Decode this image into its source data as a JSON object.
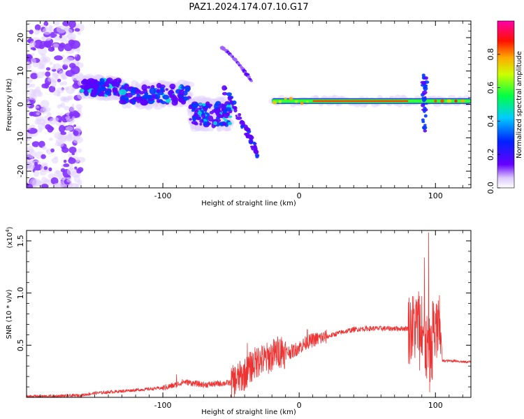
{
  "chart_data": [
    {
      "type": "heatmap",
      "title": "PAZ1.2024.174.07.10.G17",
      "xlabel": "Height of straight line (km)",
      "ylabel": "Frequency (Hz)",
      "xlim": [
        -200,
        126
      ],
      "ylim": [
        -25,
        25
      ],
      "xticks": [
        -100,
        0,
        100
      ],
      "yticks": [
        -20,
        -10,
        0,
        10,
        20
      ],
      "colorbar": {
        "label": "Normalized spectral amplitude",
        "range": [
          0,
          1
        ],
        "ticks": [
          "0.0",
          "0.2",
          "0.4",
          "0.6",
          "0.8"
        ],
        "colormap": "rainbow (white-violet-blue-cyan-green-yellow-red-magenta)"
      },
      "features": [
        {
          "kind": "noise",
          "x": [
            -200,
            -160
          ],
          "y": [
            -25,
            25
          ]
        },
        {
          "kind": "band",
          "x": [
            -160,
            -130
          ],
          "y_center": 5,
          "y_width": 6
        },
        {
          "kind": "band",
          "x": [
            -130,
            -80
          ],
          "y_center": 3,
          "y_width": 7
        },
        {
          "kind": "band",
          "x": [
            -80,
            -50
          ],
          "y_center": -3,
          "y_width": 9
        },
        {
          "kind": "arc",
          "x": [
            -57,
            -35
          ],
          "y": [
            17,
            7
          ]
        },
        {
          "kind": "streak",
          "x": [
            -55,
            -30
          ],
          "y": [
            5,
            -15
          ]
        },
        {
          "kind": "line",
          "x": [
            -20,
            126
          ],
          "y": 1,
          "amplitude": 0.85
        },
        {
          "kind": "spike",
          "x": 92,
          "y": [
            -8,
            9
          ]
        }
      ]
    },
    {
      "type": "line",
      "title": "",
      "xlabel": "Height of straight line (km)",
      "ylabel": "SNR (10 * v/v)",
      "y_multiplier": "(x10",
      "y_multiplier_exp": "4",
      "y_multiplier_close": ")",
      "xlim": [
        -200,
        126
      ],
      "ylim": [
        0,
        1.6
      ],
      "xticks": [
        -100,
        0,
        100
      ],
      "yticks": [
        "0.5",
        "1.0",
        "1.5"
      ],
      "series": [
        {
          "color": "#ee3333",
          "x": [
            -200,
            -180,
            -160,
            -150,
            -140,
            -120,
            -100,
            -90,
            -85,
            -70,
            -50,
            -40,
            -35,
            -30,
            -25,
            -20,
            -15,
            -10,
            -5,
            0,
            5,
            10,
            20,
            30,
            40,
            50,
            60,
            70,
            80,
            85,
            88,
            91,
            94,
            96,
            98,
            100,
            104,
            105,
            110,
            115,
            120,
            126
          ],
          "y": [
            0.01,
            0.01,
            0.02,
            0.04,
            0.05,
            0.07,
            0.09,
            0.12,
            0.15,
            0.12,
            0.14,
            0.22,
            0.3,
            0.35,
            0.36,
            0.4,
            0.44,
            0.43,
            0.44,
            0.48,
            0.52,
            0.55,
            0.58,
            0.62,
            0.65,
            0.66,
            0.66,
            0.66,
            0.66,
            0.67,
            0.72,
            0.65,
            0.45,
            0.4,
            0.65,
            0.64,
            0.63,
            0.35,
            0.35,
            0.35,
            0.34,
            0.34
          ],
          "spikes": [
            {
              "x": -90,
              "y": 0.22
            },
            {
              "x": -38,
              "y": 0.52
            },
            {
              "x": -30,
              "y": 0.47
            },
            {
              "x": -13,
              "y": 0.58
            },
            {
              "x": 6,
              "y": 0.65
            },
            {
              "x": 9,
              "y": 0.57
            },
            {
              "x": 84,
              "y": 0.8
            },
            {
              "x": 90,
              "y": 0.97
            },
            {
              "x": 92,
              "y": 1.34
            },
            {
              "x": 95,
              "y": 1.58
            },
            {
              "x": 98,
              "y": 0.92
            }
          ]
        }
      ]
    }
  ]
}
